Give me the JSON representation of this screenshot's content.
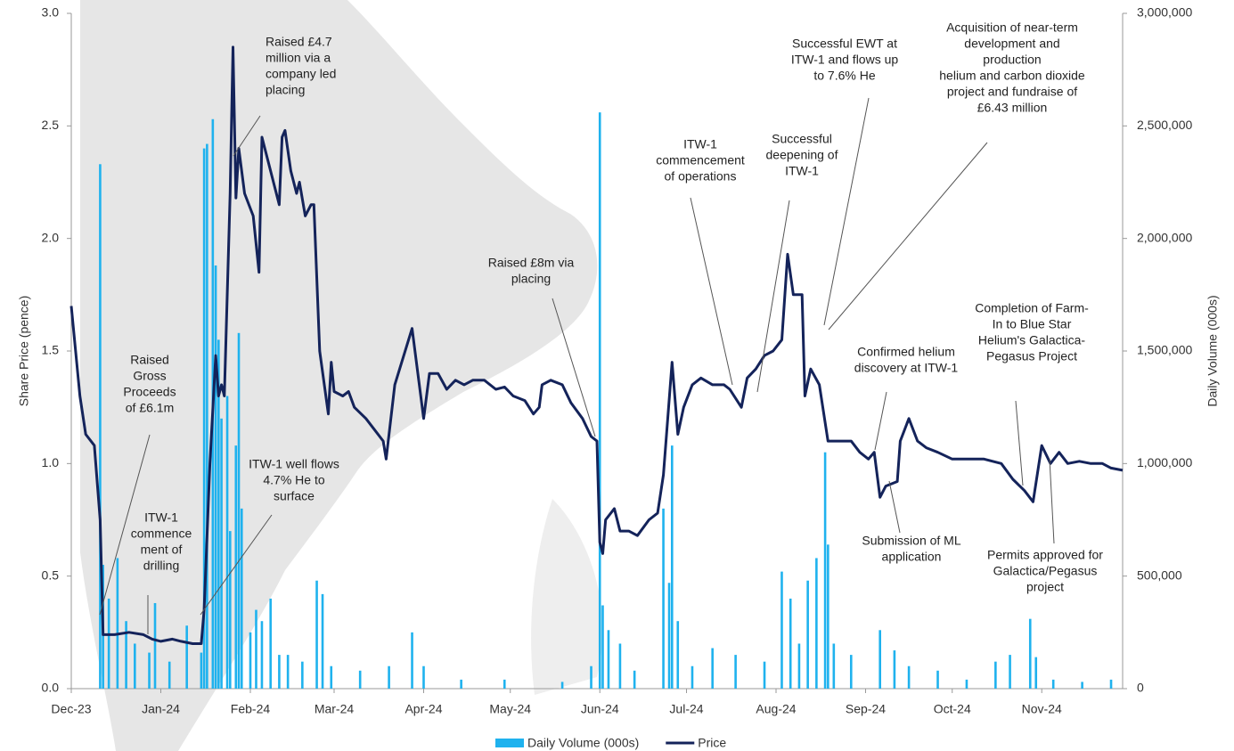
{
  "chart_data": {
    "type": "combo",
    "y_label": "Share Price (pence)",
    "y2_label": "Daily Volume (000s)",
    "xlim": [
      0,
      364
    ],
    "xticks": [
      {
        "value": 0,
        "label": "Dec-23"
      },
      {
        "value": 31,
        "label": "Jan-24"
      },
      {
        "value": 62,
        "label": "Feb-24"
      },
      {
        "value": 91,
        "label": "Mar-24"
      },
      {
        "value": 122,
        "label": "Apr-24"
      },
      {
        "value": 152,
        "label": "May-24"
      },
      {
        "value": 183,
        "label": "Jun-24"
      },
      {
        "value": 213,
        "label": "Jul-24"
      },
      {
        "value": 244,
        "label": "Aug-24"
      },
      {
        "value": 275,
        "label": "Sep-24"
      },
      {
        "value": 305,
        "label": "Oct-24"
      },
      {
        "value": 336,
        "label": "Nov-24"
      }
    ],
    "ylim": [
      0,
      3
    ],
    "yticks": [
      {
        "value": 0,
        "label": "0.0"
      },
      {
        "value": 0.5,
        "label": "0.5"
      },
      {
        "value": 1,
        "label": "1.0"
      },
      {
        "value": 1.5,
        "label": "1.5"
      },
      {
        "value": 2,
        "label": "2.0"
      },
      {
        "value": 2.5,
        "label": "2.5"
      },
      {
        "value": 3,
        "label": "3.0"
      }
    ],
    "y2lim": [
      0,
      3000000
    ],
    "y2ticks": [
      0,
      {
        "value": 500000,
        "label": "500,000"
      },
      {
        "value": 1000000,
        "label": "1,000,000"
      },
      {
        "value": 1500000,
        "label": "1,500,000"
      },
      {
        "value": 2000000,
        "label": "2,000,000"
      },
      {
        "value": 2500000,
        "label": "2,500,000"
      },
      {
        "value": 3000000,
        "label": "3,000,000"
      }
    ],
    "legend": "bottom",
    "series": [
      {
        "name": "Daily Volume (000s)",
        "type": "bar",
        "axis": "y2",
        "color": "#1fb2ee",
        "x": [
          10,
          11,
          13,
          16,
          19,
          22,
          27,
          29,
          34,
          40,
          45,
          46,
          47,
          49,
          50,
          51,
          52,
          54,
          55,
          57,
          58,
          59,
          62,
          64,
          66,
          69,
          72,
          75,
          80,
          85,
          87,
          90,
          100,
          110,
          118,
          122,
          135,
          150,
          170,
          180,
          183,
          184,
          186,
          190,
          195,
          205,
          207,
          208,
          210,
          215,
          222,
          230,
          240,
          246,
          249,
          252,
          255,
          258,
          261,
          262,
          264,
          270,
          280,
          285,
          290,
          300,
          310,
          320,
          325,
          332,
          334,
          340,
          350,
          360
        ],
        "values": [
          2330000,
          550000,
          400000,
          580000,
          300000,
          200000,
          160000,
          380000,
          120000,
          280000,
          160000,
          2400000,
          2420000,
          2530000,
          1880000,
          1550000,
          1200000,
          1300000,
          700000,
          1080000,
          1580000,
          800000,
          250000,
          350000,
          300000,
          400000,
          150000,
          150000,
          120000,
          480000,
          420000,
          100000,
          80000,
          100000,
          250000,
          100000,
          40000,
          40000,
          30000,
          100000,
          2560000,
          370000,
          260000,
          200000,
          80000,
          800000,
          470000,
          1080000,
          300000,
          100000,
          180000,
          150000,
          120000,
          520000,
          400000,
          200000,
          480000,
          580000,
          1050000,
          640000,
          200000,
          150000,
          260000,
          170000,
          100000,
          80000,
          40000,
          120000,
          150000,
          310000,
          140000,
          40000,
          30000,
          40000
        ]
      },
      {
        "name": "Price",
        "type": "line",
        "color": "#14235a",
        "x": [
          0,
          3,
          5,
          8,
          10,
          11,
          15,
          20,
          25,
          28,
          31,
          35,
          38,
          42,
          45,
          46,
          48,
          50,
          51,
          52,
          53,
          55,
          56,
          57,
          58,
          60,
          63,
          65,
          66,
          69,
          72,
          73,
          74,
          76,
          78,
          79,
          81,
          83,
          84,
          86,
          89,
          90,
          91,
          94,
          96,
          98,
          102,
          105,
          108,
          109,
          112,
          118,
          120,
          122,
          124,
          127,
          130,
          133,
          136,
          139,
          143,
          147,
          150,
          153,
          157,
          160,
          162,
          163,
          166,
          170,
          173,
          177,
          180,
          182,
          183,
          184,
          185,
          188,
          190,
          193,
          196,
          200,
          203,
          205,
          208,
          210,
          212,
          215,
          218,
          222,
          226,
          228,
          232,
          234,
          237,
          240,
          243,
          246,
          248,
          250,
          253,
          254,
          256,
          259,
          262,
          266,
          270,
          273,
          276,
          278,
          280,
          282,
          286,
          287,
          290,
          293,
          296,
          300,
          305,
          310,
          316,
          322,
          326,
          330,
          333,
          336,
          339,
          342,
          345,
          349,
          353,
          357,
          360,
          364
        ],
        "values": [
          1.7,
          1.3,
          1.13,
          1.08,
          0.75,
          0.24,
          0.24,
          0.25,
          0.24,
          0.22,
          0.21,
          0.22,
          0.21,
          0.2,
          0.2,
          0.35,
          1.0,
          1.48,
          1.3,
          1.35,
          1.3,
          2.2,
          2.85,
          2.18,
          2.4,
          2.2,
          2.1,
          1.85,
          2.45,
          2.3,
          2.15,
          2.45,
          2.48,
          2.3,
          2.2,
          2.25,
          2.1,
          2.15,
          2.15,
          1.5,
          1.22,
          1.45,
          1.32,
          1.3,
          1.32,
          1.25,
          1.2,
          1.15,
          1.1,
          1.02,
          1.35,
          1.6,
          1.4,
          1.2,
          1.4,
          1.4,
          1.33,
          1.37,
          1.35,
          1.37,
          1.37,
          1.33,
          1.34,
          1.3,
          1.28,
          1.22,
          1.25,
          1.35,
          1.37,
          1.35,
          1.27,
          1.2,
          1.12,
          1.1,
          0.65,
          0.6,
          0.75,
          0.8,
          0.7,
          0.7,
          0.68,
          0.75,
          0.78,
          0.95,
          1.45,
          1.13,
          1.25,
          1.35,
          1.38,
          1.35,
          1.35,
          1.33,
          1.25,
          1.38,
          1.42,
          1.48,
          1.5,
          1.55,
          1.93,
          1.75,
          1.75,
          1.3,
          1.42,
          1.35,
          1.1,
          1.1,
          1.1,
          1.05,
          1.02,
          1.05,
          0.85,
          0.9,
          0.92,
          1.1,
          1.2,
          1.1,
          1.07,
          1.05,
          1.02,
          1.02,
          1.02,
          1.0,
          0.93,
          0.88,
          0.83,
          1.08,
          1.0,
          1.05,
          1.0,
          1.01,
          1.0,
          1.0,
          0.98,
          0.97
        ]
      }
    ],
    "annotations": [
      [
        "Raised £4.7",
        "million via a",
        "company led",
        "placing"
      ],
      [
        "Raised",
        "Gross",
        "Proceeds",
        "of £6.1m"
      ],
      [
        "ITW-1",
        "commence",
        "ment of",
        "drilling"
      ],
      [
        "ITW-1 well flows",
        "4.7% He to",
        "surface"
      ],
      [
        "Raised £8m via",
        "placing"
      ],
      [
        "ITW-1",
        "commencement",
        "of operations"
      ],
      [
        "Successful",
        "deepening of",
        "ITW-1"
      ],
      [
        "Successful EWT at",
        "ITW-1 and flows up",
        "to 7.6% He"
      ],
      [
        "Acquisition of near-term",
        "development and",
        "production",
        "helium and carbon dioxide",
        "project and fundraise of",
        "£6.43 million"
      ],
      [
        "Confirmed helium",
        "discovery at ITW-1"
      ],
      [
        "Submission of ML",
        "application"
      ],
      [
        "Completion of Farm-",
        "In to Blue Star",
        "Helium's Galactica-",
        "Pegasus Project"
      ],
      [
        "Permits approved for",
        "Galactica/Pegasus",
        "project"
      ]
    ]
  }
}
